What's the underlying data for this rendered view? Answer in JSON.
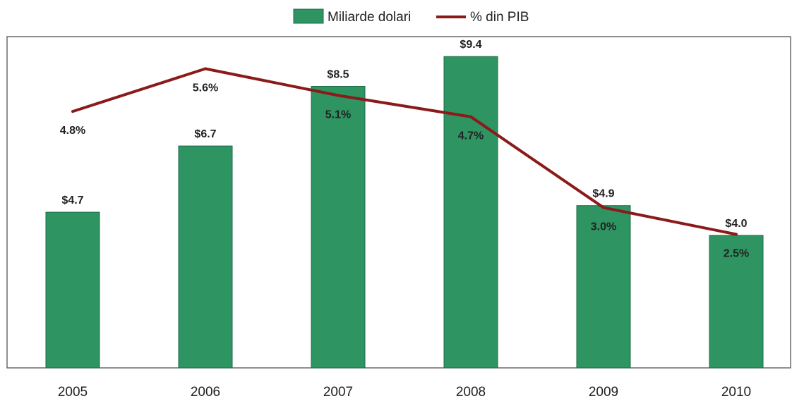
{
  "chart_data": {
    "type": "bar",
    "title": "",
    "xlabel": "",
    "ylabel": "",
    "categories": [
      "2005",
      "2006",
      "2007",
      "2008",
      "2009",
      "2010"
    ],
    "series": [
      {
        "name": "Miliarde dolari",
        "type": "bar",
        "color": "#2e9462",
        "values": [
          4.7,
          6.7,
          8.5,
          9.4,
          4.9,
          4.0
        ],
        "labels": [
          "$4.7",
          "$6.7",
          "$8.5",
          "$9.4",
          "$4.9",
          "$4.0"
        ]
      },
      {
        "name": "% din PIB",
        "type": "line",
        "color": "#8b1a1a",
        "values": [
          4.8,
          5.6,
          5.1,
          4.7,
          3.0,
          2.5
        ],
        "labels": [
          "4.8%",
          "5.6%",
          "5.1%",
          "4.7%",
          "3.0%",
          "2.5%"
        ]
      }
    ],
    "ylim_bars": [
      0,
      10
    ],
    "ylim_line": [
      0,
      6.2
    ],
    "legend_position": "top-center",
    "grid": false
  }
}
